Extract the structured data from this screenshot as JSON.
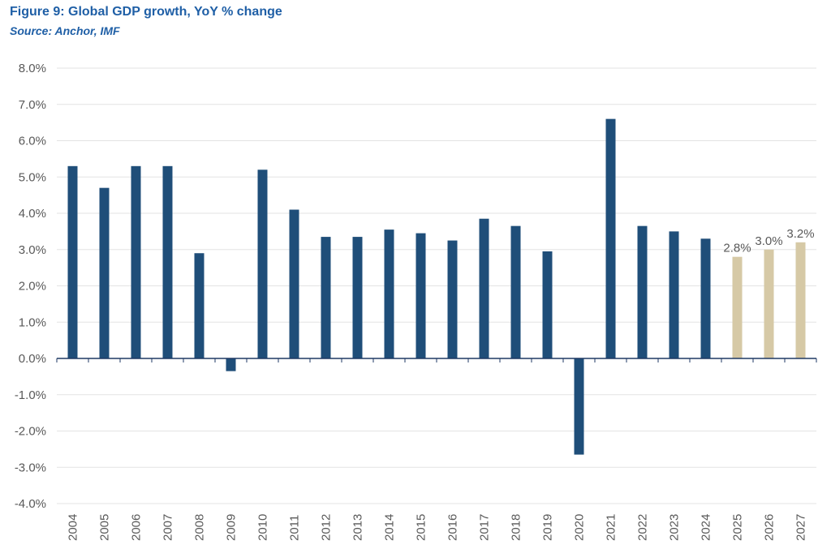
{
  "figure": {
    "title": "Figure 9: Global GDP growth, YoY % change",
    "source": "Source: Anchor, IMF"
  },
  "chart_data": {
    "type": "bar",
    "title": "Figure 9: Global GDP growth, YoY % change",
    "xlabel": "",
    "ylabel": "",
    "ylim": [
      -4.0,
      8.0
    ],
    "yticks": [
      8.0,
      7.0,
      6.0,
      5.0,
      4.0,
      3.0,
      2.0,
      1.0,
      0.0,
      -1.0,
      -2.0,
      -3.0,
      -4.0
    ],
    "ytick_labels": [
      "8.0%",
      "7.0%",
      "6.0%",
      "5.0%",
      "4.0%",
      "3.0%",
      "2.0%",
      "1.0%",
      "0.0%",
      "-1.0%",
      "-2.0%",
      "-3.0%",
      "-4.0%"
    ],
    "grid": true,
    "categories": [
      "2004",
      "2005",
      "2006",
      "2007",
      "2008",
      "2009",
      "2010",
      "2011",
      "2012",
      "2013",
      "2014",
      "2015",
      "2016",
      "2017",
      "2018",
      "2019",
      "2020",
      "2021",
      "2022",
      "2023",
      "2024",
      "2025",
      "2026",
      "2027"
    ],
    "values": [
      5.3,
      4.7,
      5.3,
      5.3,
      2.9,
      -0.35,
      5.2,
      4.1,
      3.35,
      3.35,
      3.55,
      3.45,
      3.25,
      3.85,
      3.65,
      2.95,
      -2.65,
      6.6,
      3.65,
      3.5,
      3.3,
      2.8,
      3.0,
      3.2
    ],
    "forecast": [
      false,
      false,
      false,
      false,
      false,
      false,
      false,
      false,
      false,
      false,
      false,
      false,
      false,
      false,
      false,
      false,
      false,
      false,
      false,
      false,
      false,
      true,
      true,
      true
    ],
    "data_labels": [
      "",
      "",
      "",
      "",
      "",
      "",
      "",
      "",
      "",
      "",
      "",
      "",
      "",
      "",
      "",
      "",
      "",
      "",
      "",
      "",
      "",
      "2.8%",
      "3.0%",
      "3.2%"
    ],
    "colors": {
      "actual": "#1f4e79",
      "forecast": "#d6c9a6",
      "grid": "#e3e3e3",
      "axis": "#1f3864"
    }
  }
}
